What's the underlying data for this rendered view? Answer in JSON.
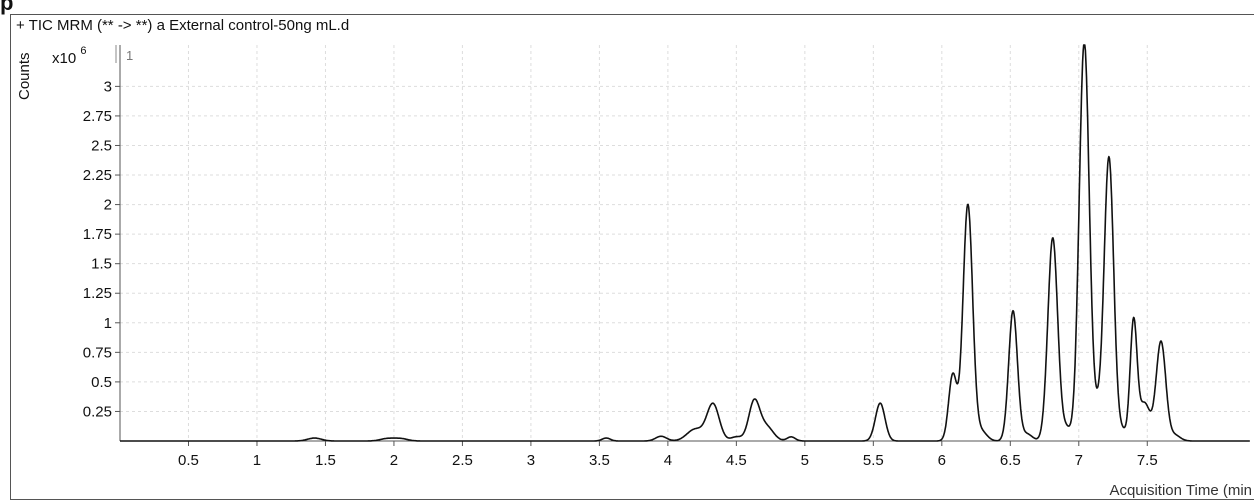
{
  "page": {
    "partial_heading": "p"
  },
  "chart_data": {
    "type": "line",
    "title": "+ TIC MRM (** -> **) a External control-50ng mL.d",
    "ylabel": "Counts",
    "y_multiplier": "x10",
    "y_exponent": "6",
    "panel_index": "1",
    "xlabel": "Acquisition Time (min",
    "xlim": [
      0,
      8.25
    ],
    "ylim": [
      0,
      3.35
    ],
    "x_ticks": [
      0.5,
      1,
      1.5,
      2,
      2.5,
      3,
      3.5,
      4,
      4.5,
      5,
      5.5,
      6,
      6.5,
      7,
      7.5
    ],
    "x_tick_labels": [
      "0.5",
      "1",
      "1.5",
      "2",
      "2.5",
      "3",
      "3.5",
      "4",
      "4.5",
      "5",
      "5.5",
      "6",
      "6.5",
      "7",
      "7.5"
    ],
    "y_ticks": [
      0.25,
      0.5,
      0.75,
      1,
      1.25,
      1.5,
      1.75,
      2,
      2.25,
      2.5,
      2.75,
      3
    ],
    "y_tick_labels": [
      "0.25",
      "0.5",
      "0.75",
      "1",
      "1.25",
      "1.5",
      "1.75",
      "2",
      "2.25",
      "2.5",
      "2.75",
      "3"
    ],
    "grid": true,
    "line_color": "#111111",
    "grid_color": "#dddddd",
    "series": [
      {
        "peaks": [
          {
            "center": 1.42,
            "height": 0.025,
            "width": 0.05
          },
          {
            "center": 1.95,
            "height": 0.02,
            "width": 0.05
          },
          {
            "center": 2.05,
            "height": 0.02,
            "width": 0.05
          },
          {
            "center": 3.55,
            "height": 0.025,
            "width": 0.03
          },
          {
            "center": 3.95,
            "height": 0.04,
            "width": 0.04
          },
          {
            "center": 4.2,
            "height": 0.1,
            "width": 0.06
          },
          {
            "center": 4.33,
            "height": 0.31,
            "width": 0.045
          },
          {
            "center": 4.5,
            "height": 0.035,
            "width": 0.04
          },
          {
            "center": 4.63,
            "height": 0.33,
            "width": 0.04
          },
          {
            "center": 4.72,
            "height": 0.12,
            "width": 0.05
          },
          {
            "center": 4.9,
            "height": 0.035,
            "width": 0.03
          },
          {
            "center": 5.55,
            "height": 0.32,
            "width": 0.035
          },
          {
            "center": 6.08,
            "height": 0.56,
            "width": 0.03
          },
          {
            "center": 6.19,
            "height": 2.0,
            "width": 0.035
          },
          {
            "center": 6.29,
            "height": 0.08,
            "width": 0.04
          },
          {
            "center": 6.52,
            "height": 1.1,
            "width": 0.032
          },
          {
            "center": 6.62,
            "height": 0.06,
            "width": 0.04
          },
          {
            "center": 6.81,
            "height": 1.72,
            "width": 0.036
          },
          {
            "center": 6.91,
            "height": 0.1,
            "width": 0.03
          },
          {
            "center": 7.04,
            "height": 3.38,
            "width": 0.037
          },
          {
            "center": 7.14,
            "height": 0.2,
            "width": 0.03
          },
          {
            "center": 7.22,
            "height": 2.4,
            "width": 0.035
          },
          {
            "center": 7.32,
            "height": 0.08,
            "width": 0.03
          },
          {
            "center": 7.4,
            "height": 1.0,
            "width": 0.025
          },
          {
            "center": 7.48,
            "height": 0.32,
            "width": 0.04
          },
          {
            "center": 7.6,
            "height": 0.84,
            "width": 0.035
          },
          {
            "center": 7.7,
            "height": 0.05,
            "width": 0.04
          }
        ]
      }
    ]
  }
}
